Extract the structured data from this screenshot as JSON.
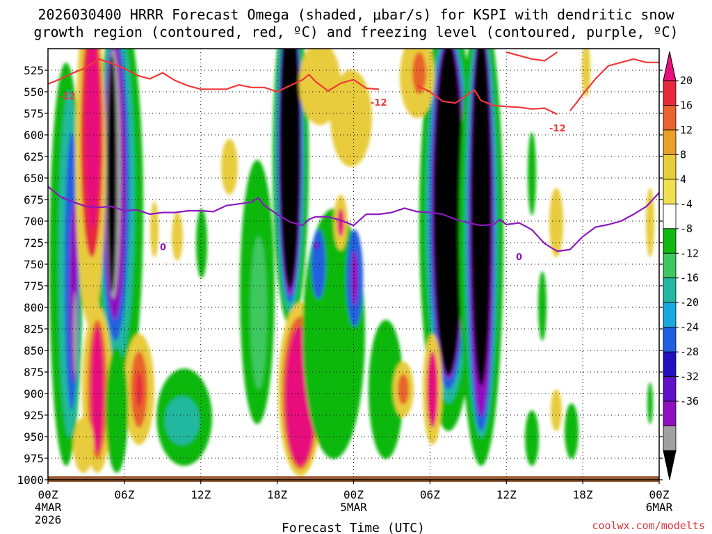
{
  "chart_data": {
    "type": "heatmap",
    "title_lines": [
      "2026030400 HRRR Forecast Omega (shaded, μbar/s) for KSPI with dendritic snow",
      "growth region (contoured, red, ºC) and freezing level (contoured, purple, ºC)"
    ],
    "xlabel": "Forecast Time (UTC)",
    "x_range_hours": [
      0,
      48
    ],
    "x_ticks": [
      {
        "hour": 0,
        "label": "00Z",
        "date1": "4MAR",
        "date2": "2026"
      },
      {
        "hour": 6,
        "label": "06Z"
      },
      {
        "hour": 12,
        "label": "12Z"
      },
      {
        "hour": 18,
        "label": "18Z"
      },
      {
        "hour": 24,
        "label": "00Z",
        "date1": "5MAR"
      },
      {
        "hour": 30,
        "label": "06Z"
      },
      {
        "hour": 36,
        "label": "12Z"
      },
      {
        "hour": 42,
        "label": "18Z"
      },
      {
        "hour": 48,
        "label": "00Z",
        "date1": "6MAR"
      }
    ],
    "y_range_hpa": [
      1000,
      500
    ],
    "y_ticks": [
      525,
      550,
      575,
      600,
      625,
      650,
      675,
      700,
      725,
      750,
      775,
      800,
      825,
      850,
      875,
      900,
      925,
      950,
      975,
      1000
    ],
    "colorbar": {
      "labels": [
        "20",
        "16",
        "12",
        "8",
        "4",
        "-4",
        "-8",
        "-12",
        "-16",
        "-20",
        "-24",
        "-28",
        "-32",
        "-36"
      ],
      "colors": [
        "#e8107c",
        "#e8283c",
        "#e8642c",
        "#e8a028",
        "#e8cc3c",
        "#f0e050",
        "#ffffff",
        "#10b810",
        "#40c860",
        "#20b8a0",
        "#18a8e0",
        "#2060e0",
        "#2010c0",
        "#6010c8",
        "#9010c0",
        "#a0a0a0",
        "#000000"
      ]
    },
    "contour_labels": {
      "dgz": "-12",
      "freezing": "0"
    },
    "series": [
      {
        "name": "dendritic growth region -12°C",
        "color": "#f03838",
        "segments": [
          [
            [
              0,
              541
            ],
            [
              1,
              535
            ],
            [
              2,
              528
            ],
            [
              3,
              522
            ],
            [
              4,
              512
            ],
            [
              5,
              517
            ],
            [
              6,
              523
            ],
            [
              7,
              531
            ],
            [
              8,
              535
            ],
            [
              9,
              528
            ],
            [
              10,
              537
            ],
            [
              11,
              543
            ],
            [
              12,
              547
            ],
            [
              13,
              547
            ],
            [
              14,
              547
            ],
            [
              15,
              542
            ],
            [
              16,
              545
            ],
            [
              17,
              545
            ],
            [
              18,
              550
            ],
            [
              19,
              543
            ],
            [
              20,
              536
            ],
            [
              20.5,
              530
            ],
            [
              21,
              538
            ],
            [
              22,
              549
            ],
            [
              23,
              540
            ],
            [
              24,
              536
            ],
            [
              25,
              546
            ],
            [
              26,
              547
            ]
          ],
          [
            [
              29,
              543
            ],
            [
              30,
              550
            ],
            [
              31,
              561
            ],
            [
              32,
              563
            ],
            [
              33,
              553
            ],
            [
              33.5,
              548
            ],
            [
              34,
              560
            ],
            [
              35,
              566
            ],
            [
              36,
              567
            ],
            [
              37,
              568
            ],
            [
              38,
              570
            ],
            [
              39,
              569
            ],
            [
              40,
              576
            ]
          ],
          [
            [
              41,
              572
            ],
            [
              41.5,
              563
            ],
            [
              42,
              553
            ],
            [
              43,
              535
            ],
            [
              44,
              520
            ],
            [
              45,
              516
            ],
            [
              46,
              512
            ],
            [
              47,
              516
            ],
            [
              48,
              516
            ]
          ],
          [
            [
              36,
              504
            ],
            [
              37,
              508
            ],
            [
              38,
              512
            ],
            [
              39,
              514
            ],
            [
              40,
              504
            ]
          ]
        ]
      },
      {
        "name": "freezing level 0°C",
        "color": "#8c18c0",
        "segments": [
          [
            [
              0,
              660
            ],
            [
              1,
              672
            ],
            [
              2,
              678
            ],
            [
              3,
              683
            ],
            [
              4,
              684
            ],
            [
              5,
              683
            ],
            [
              6,
              688
            ],
            [
              7,
              687
            ],
            [
              8,
              692
            ],
            [
              9,
              690
            ],
            [
              10,
              690
            ],
            [
              11,
              688
            ],
            [
              12,
              688
            ],
            [
              13,
              689
            ],
            [
              14,
              682
            ],
            [
              15,
              680
            ],
            [
              16,
              678
            ],
            [
              16.5,
              673
            ],
            [
              17,
              682
            ],
            [
              18,
              692
            ],
            [
              19,
              701
            ],
            [
              20,
              705
            ],
            [
              20.5,
              698
            ],
            [
              21,
              695
            ],
            [
              22,
              695
            ],
            [
              23,
              699
            ],
            [
              24,
              705
            ],
            [
              25,
              692
            ],
            [
              26,
              692
            ],
            [
              27,
              690
            ],
            [
              28,
              685
            ],
            [
              29,
              689
            ],
            [
              30,
              690
            ],
            [
              31,
              692
            ],
            [
              32,
              698
            ],
            [
              33,
              702
            ],
            [
              34,
              705
            ],
            [
              35,
              704
            ],
            [
              35.5,
              698
            ],
            [
              36,
              704
            ],
            [
              37,
              702
            ],
            [
              38,
              710
            ],
            [
              39,
              726
            ],
            [
              40,
              735
            ],
            [
              41,
              733
            ],
            [
              42,
              718
            ],
            [
              43,
              707
            ],
            [
              44,
              704
            ],
            [
              45,
              700
            ],
            [
              46,
              692
            ],
            [
              47,
              683
            ],
            [
              48,
              667
            ]
          ]
        ]
      }
    ]
  },
  "footer": {
    "credit": "coolwx.com/modelts"
  }
}
